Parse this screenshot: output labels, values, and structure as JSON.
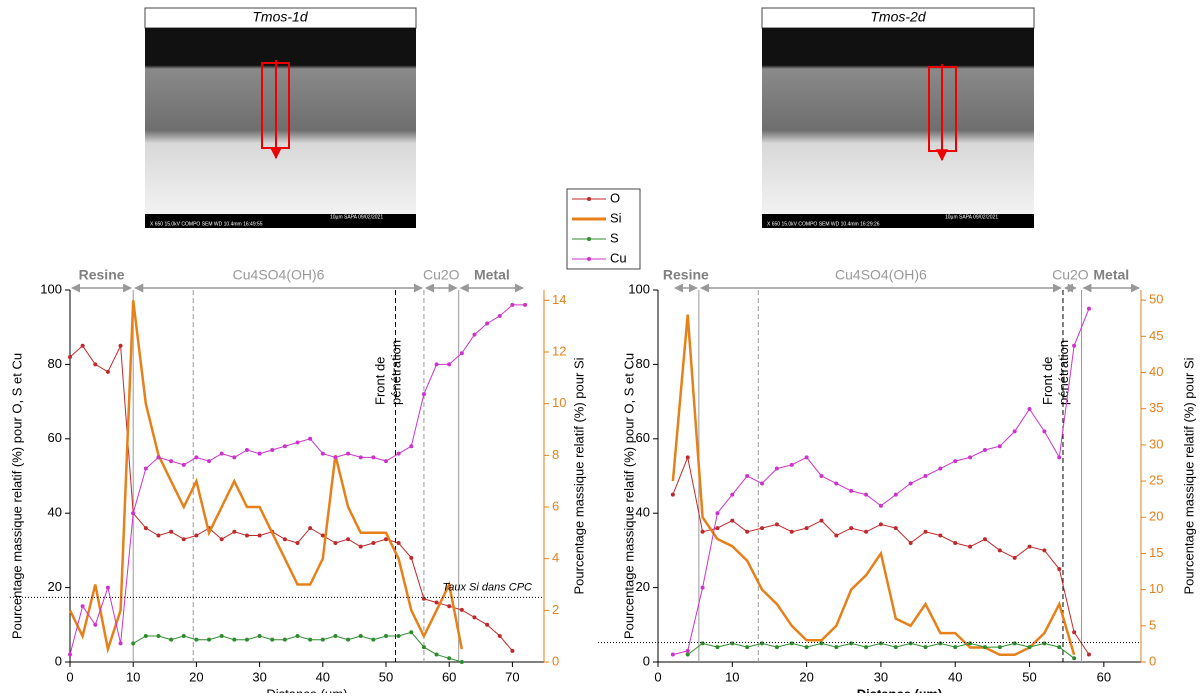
{
  "images": [
    {
      "title": "Tmos-1d",
      "info_top": "10µm   SAPA    09/02/2021",
      "info_bottom": "X 650     15.0kV COMPO    SEM     WD 10.4mm 16:49:55"
    },
    {
      "title": "Tmos-2d",
      "info_top": "10µm   SAPA    09/02/2021",
      "info_bottom": "X 650     15.0kV COMPO    SEM     WD 10.4mm 16:29:26"
    }
  ],
  "chart_data": [
    {
      "type": "line",
      "xlabel": "Distance (µm)",
      "ylabel": "Pourcentage massique relatif (%) pour O, S et Cu",
      "y2label": "Pourcentage massique relatif (%) pour Si",
      "xlim": [
        0,
        75
      ],
      "xticks": [
        0,
        10,
        20,
        30,
        40,
        50,
        60,
        70
      ],
      "ylim": [
        0,
        100
      ],
      "yticks": [
        0,
        20,
        40,
        60,
        80,
        100
      ],
      "y2lim": [
        0,
        14.4
      ],
      "y2ticks": [
        0,
        2,
        4,
        6,
        8,
        10,
        12,
        14
      ],
      "x": [
        0,
        2,
        4,
        6,
        8,
        10,
        12,
        14,
        16,
        18,
        20,
        22,
        24,
        26,
        28,
        30,
        32,
        34,
        36,
        38,
        40,
        42,
        44,
        46,
        48,
        50,
        52,
        54,
        56,
        58,
        60,
        62,
        64,
        66,
        68,
        70,
        72
      ],
      "series": [
        {
          "name": "O",
          "color": "#c0292b",
          "values": [
            82,
            85,
            80,
            78,
            85,
            40,
            36,
            34,
            35,
            33,
            34,
            36,
            33,
            35,
            34,
            34,
            35,
            33,
            32,
            36,
            34,
            32,
            33,
            31,
            32,
            33,
            32,
            28,
            17,
            16,
            15,
            14,
            12,
            10,
            7,
            3,
            null
          ]
        },
        {
          "name": "Si",
          "color": "#e5801a",
          "axis": "y2",
          "values": [
            2,
            1,
            3,
            0.5,
            2,
            14,
            10,
            8,
            7,
            6,
            7,
            5,
            6,
            7,
            6,
            6,
            5,
            4,
            3,
            3,
            4,
            8,
            6,
            5,
            5,
            5,
            4,
            2,
            1,
            2,
            3,
            0.5,
            null,
            null,
            null,
            null,
            null
          ]
        },
        {
          "name": "S",
          "color": "#2e8b2e",
          "values": [
            null,
            null,
            null,
            null,
            null,
            5,
            7,
            7,
            6,
            7,
            6,
            6,
            7,
            6,
            6,
            7,
            6,
            6,
            7,
            6,
            6,
            7,
            6,
            7,
            6,
            7,
            7,
            8,
            4,
            2,
            1,
            0,
            null,
            null,
            null,
            null,
            null
          ]
        },
        {
          "name": "Cu",
          "color": "#cc33cc",
          "values": [
            2,
            15,
            10,
            20,
            5,
            40,
            52,
            55,
            54,
            53,
            55,
            54,
            56,
            55,
            57,
            56,
            57,
            58,
            59,
            60,
            56,
            55,
            56,
            55,
            55,
            54,
            56,
            58,
            72,
            80,
            80,
            83,
            88,
            91,
            93,
            96,
            96
          ]
        }
      ],
      "regions": [
        {
          "label": "Resine",
          "from": 0,
          "to": 10
        },
        {
          "label": "Cu4SO4(OH)6",
          "from": 10,
          "to": 56
        },
        {
          "label": "Cu2O",
          "from": 56,
          "to": 61.5
        },
        {
          "label": "Metal",
          "from": 61.5,
          "to": 72
        }
      ],
      "vlines": [
        {
          "x": 10,
          "style": "solid"
        },
        {
          "x": 19.5,
          "style": "dashed"
        },
        {
          "x": 51.5,
          "style": "dashed-black",
          "label": "Front de pénétration"
        },
        {
          "x": 56,
          "style": "dashed"
        },
        {
          "x": 61.5,
          "style": "solid"
        }
      ],
      "hline": {
        "value": 2.5,
        "axis": "y2",
        "label": "Taux Si dans CPC"
      }
    },
    {
      "type": "line",
      "xlabel": "Distance (µm)",
      "ylabel": "Pourcentage massique relatif (%) pour O, S et Cu",
      "y2label": "Pourcentage massique relatif (%) pour Si",
      "xlim": [
        0,
        65
      ],
      "xticks": [
        0,
        10,
        20,
        30,
        40,
        50,
        60
      ],
      "ylim": [
        0,
        100
      ],
      "yticks": [
        0,
        20,
        40,
        60,
        80,
        100
      ],
      "y2lim": [
        0,
        51.4
      ],
      "y2ticks": [
        0,
        5,
        10,
        15,
        20,
        25,
        30,
        35,
        40,
        45,
        50
      ],
      "x": [
        2,
        4,
        6,
        8,
        10,
        12,
        14,
        16,
        18,
        20,
        22,
        24,
        26,
        28,
        30,
        32,
        34,
        36,
        38,
        40,
        42,
        44,
        46,
        48,
        50,
        52,
        54,
        56,
        58
      ],
      "series": [
        {
          "name": "O",
          "color": "#c0292b",
          "values": [
            45,
            55,
            35,
            36,
            38,
            35,
            36,
            37,
            35,
            36,
            38,
            34,
            36,
            35,
            37,
            36,
            32,
            35,
            34,
            32,
            31,
            33,
            30,
            28,
            31,
            30,
            25,
            8,
            2
          ]
        },
        {
          "name": "Si",
          "color": "#e5801a",
          "axis": "y2",
          "values": [
            25,
            48,
            20,
            17,
            16,
            14,
            10,
            8,
            5,
            3,
            3,
            5,
            10,
            12,
            15,
            6,
            5,
            8,
            4,
            4,
            2,
            2,
            1,
            1,
            2,
            4,
            8,
            1,
            null
          ]
        },
        {
          "name": "S",
          "color": "#2e8b2e",
          "values": [
            null,
            2,
            5,
            4,
            5,
            4,
            5,
            4,
            5,
            4,
            5,
            4,
            5,
            4,
            5,
            4,
            5,
            4,
            5,
            4,
            5,
            4,
            4,
            5,
            4,
            5,
            4,
            1,
            null
          ]
        },
        {
          "name": "Cu",
          "color": "#cc33cc",
          "values": [
            2,
            3,
            20,
            40,
            45,
            50,
            48,
            52,
            53,
            55,
            50,
            48,
            46,
            45,
            42,
            45,
            48,
            50,
            52,
            54,
            55,
            57,
            58,
            62,
            68,
            62,
            55,
            85,
            95
          ]
        }
      ],
      "regions": [
        {
          "label": "Resine",
          "from": 2,
          "to": 5.5
        },
        {
          "label": "Cu4SO4(OH)6",
          "from": 5.5,
          "to": 54.5
        },
        {
          "label": "Cu2O",
          "from": 54.5,
          "to": 56.5
        },
        {
          "label": "Metal",
          "from": 57,
          "to": 65
        }
      ],
      "vlines": [
        {
          "x": 5.5,
          "style": "solid"
        },
        {
          "x": 13.5,
          "style": "dashed"
        },
        {
          "x": 54.5,
          "style": "dashed-black",
          "label": "Front de pénétration"
        },
        {
          "x": 57,
          "style": "solid"
        }
      ],
      "hline": {
        "value": 2.7,
        "axis": "y2"
      }
    }
  ]
}
